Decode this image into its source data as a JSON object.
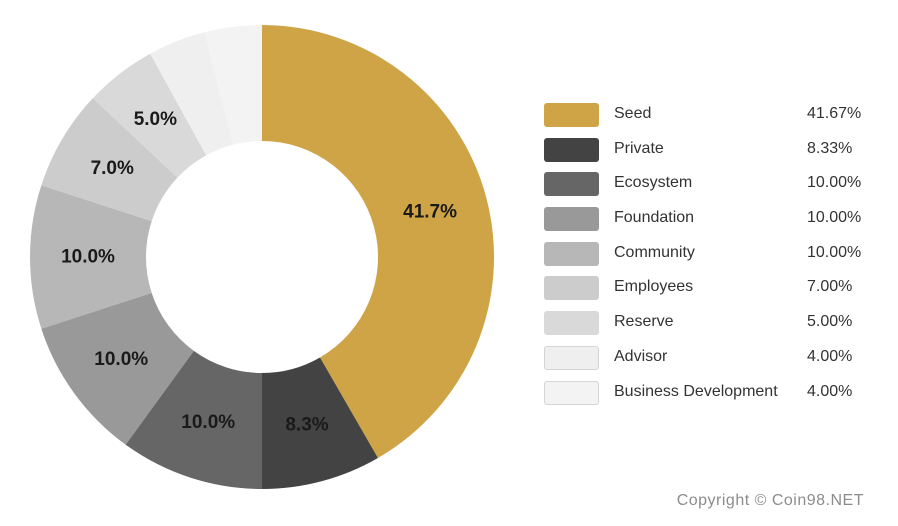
{
  "chart_data": {
    "type": "pie",
    "variant": "donut",
    "title": "",
    "categories": [
      "Seed",
      "Private",
      "Ecosystem",
      "Foundation",
      "Community",
      "Employees",
      "Reserve",
      "Advisor",
      "Business Development"
    ],
    "values": [
      41.67,
      8.33,
      10.0,
      10.0,
      10.0,
      7.0,
      5.0,
      4.0,
      4.0
    ],
    "value_labels": [
      "41.67%",
      "8.33%",
      "10.00%",
      "10.00%",
      "10.00%",
      "7.00%",
      "5.00%",
      "4.00%",
      "4.00%"
    ],
    "slice_labels": [
      "41.7%",
      "8.3%",
      "10.0%",
      "10.0%",
      "10.0%",
      "7.0%",
      "5.0%",
      "",
      ""
    ],
    "colors": [
      "#CEA446",
      "#434343",
      "#666666",
      "#999999",
      "#B7B7B7",
      "#CCCCCC",
      "#D9D9D9",
      "#EFEFEF",
      "#F3F3F3"
    ],
    "legend_position": "right"
  },
  "footer": {
    "copyright": "Copyright © Coin98.NET"
  }
}
